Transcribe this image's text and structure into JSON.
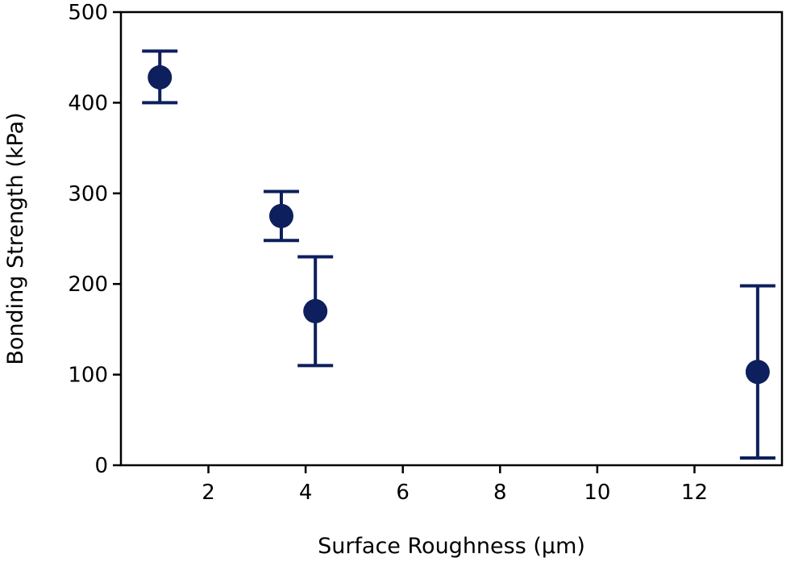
{
  "chart_data": {
    "type": "scatter",
    "title": "",
    "xlabel": "Surface Roughness (µm)",
    "ylabel": "Bonding Strength (kPa)",
    "xlim": [
      0.2,
      13.8
    ],
    "ylim": [
      0,
      500
    ],
    "xticks": [
      2,
      4,
      6,
      8,
      10,
      12
    ],
    "yticks": [
      0,
      100,
      200,
      300,
      400,
      500
    ],
    "grid": false,
    "color": "#0d1f5c",
    "points": [
      {
        "x": 1.0,
        "y": 428,
        "err_low": 400,
        "err_high": 457
      },
      {
        "x": 3.5,
        "y": 275,
        "err_low": 248,
        "err_high": 302
      },
      {
        "x": 4.2,
        "y": 170,
        "err_low": 110,
        "err_high": 230
      },
      {
        "x": 13.3,
        "y": 103,
        "err_low": 8,
        "err_high": 198
      }
    ]
  }
}
